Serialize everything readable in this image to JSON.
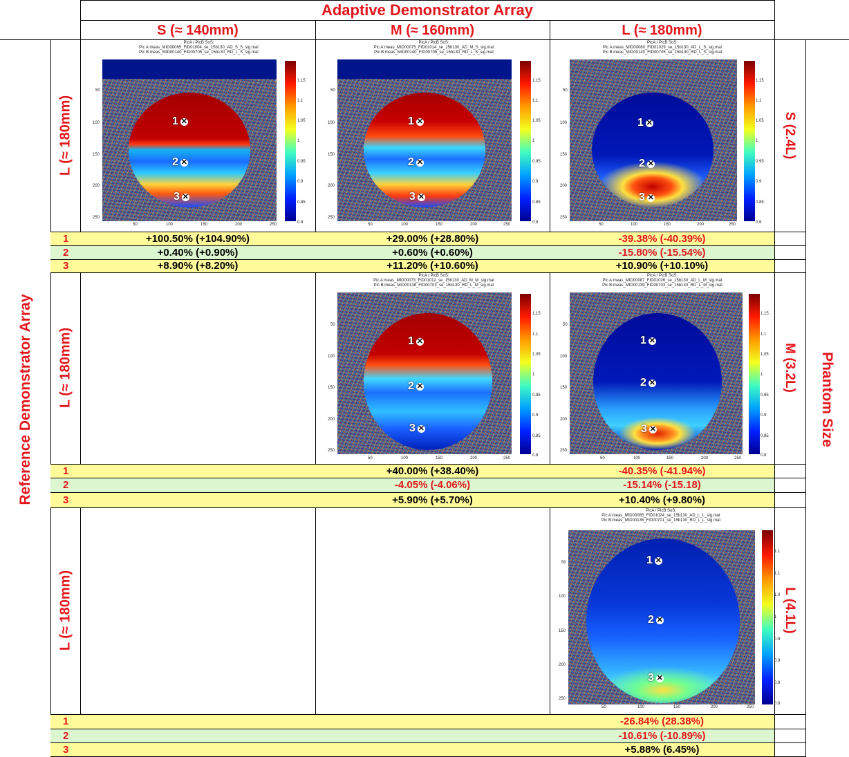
{
  "header": {
    "title": "Adaptive Demonstrator Array",
    "columns": [
      "S (≈ 140mm)",
      "M (≈ 160mm)",
      "L (≈ 180mm)"
    ]
  },
  "left_axis": {
    "title": "Reference Demonstrator Array",
    "row_labels": [
      "L (≈ 180mm)",
      "L (≈ 180mm)",
      "L (≈ 180mm)"
    ]
  },
  "right_axis": {
    "title": "Phantom Size",
    "row_labels": [
      "S (2.4L)",
      "M (3.2L)",
      "L (4.1L)"
    ]
  },
  "plots": {
    "s_s": {
      "t1": "PicA / PicB SoS:",
      "t2": "Pic A:meas_MID00065_FID01004_se_15b130_AD_S_S_sig.mat",
      "t3": "Pic B:meas_MID00140_FID00705_se_15b130_RD_L_S_sig.mat"
    },
    "m_s": {
      "t1": "PicA / PicB SoS:",
      "t2": "Pic A:meas_MID00075_FID01014_se_15b130_AD_M_S_sig.mat",
      "t3": "Pic B:meas_MID00140_FID00705_se_15b130_RD_L_S_sig.mat"
    },
    "l_s": {
      "t1": "PicA / PicB SoS:",
      "t2": "Pic A:meas_MID00080_FID01029_se_15b130_AD_L_S_sig.mat",
      "t3": "Pic B:meas_MID00140_FID00705_se_15b130_RD_L_S_sig.mat"
    },
    "m_m": {
      "t1": "PicA / PicB SoS:",
      "t2": "Pic A:meas_MID00073_FID01012_se_15b130_AD_M_M_sig.mat",
      "t3": "Pic B:meas_MID00138_FID00703_se_15b130_RD_L_M_sig.mat"
    },
    "l_m": {
      "t1": "PicA / PicB SoS:",
      "t2": "Pic A:meas_MID00087_FID01026_se_15b130_AD_L_M_sig.mat",
      "t3": "Pic B:meas_MID00139_FID00703_se_15b130_RD_L_M_sig.mat"
    },
    "l_l": {
      "t1": "PicA / PicB SoS:",
      "t2": "Pic A:meas_MID00085_FID01024_se_15b130_AD_L_L_sig.mat",
      "t3": "Pic B:meas_MID00136_FID00701_se_15b130_RD_L_L_sig.mat"
    }
  },
  "axes": {
    "x_ticks": [
      "50",
      "100",
      "150",
      "200",
      "250"
    ],
    "y_ticks": [
      "50",
      "100",
      "150",
      "200",
      "250"
    ],
    "cbar_ticks_a": [
      "1.15",
      "1.1",
      "1.05",
      "1",
      "0.95",
      "0.9",
      "0.85",
      "0.8"
    ],
    "cbar_ticks_b": [
      "1.1",
      "1.1",
      "1.0",
      "1",
      "0.9",
      "0.9",
      "0.8",
      "0.8"
    ]
  },
  "markers": [
    "1",
    "2",
    "3"
  ],
  "results": {
    "row_indices": [
      "1",
      "2",
      "3"
    ],
    "phantom_s": {
      "col_s": [
        "+100.50% (+104.90%)",
        "+0.40% (+0.90%)",
        "+8.90% (+8.20%)"
      ],
      "col_m": [
        "+29.00% (+28.80%)",
        "+0.60% (+0.60%)",
        "+11.20% (+10.60%)"
      ],
      "col_l": [
        "-39.38% (-40.39%)",
        "-15.80% (-15.54%)",
        "+10.90% (+10.10%)"
      ]
    },
    "phantom_m": {
      "col_m": [
        "+40.00% (+38.40%)",
        "-4.05% (-4.06%)",
        "+5.90% (+5.70%)"
      ],
      "col_l": [
        "-40.35% (-41.94%)",
        "-15.14% (-15.18)",
        "+10.40% (+9.80%)"
      ]
    },
    "phantom_l": {
      "col_l": [
        "-26.84% (28.38%)",
        "-10.61% (-10.89%)",
        "+5.88% (6.45%)"
      ]
    }
  },
  "colors": {
    "accent": "#e3161b",
    "row_yellow": "#fffb9a",
    "row_green": "#dcf7cf"
  }
}
